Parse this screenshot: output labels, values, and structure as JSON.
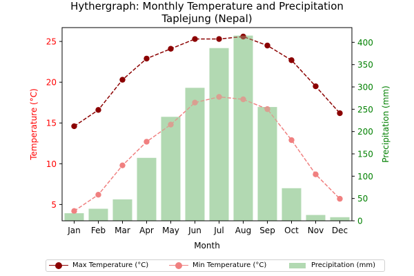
{
  "chart_data": {
    "type": "bar+line",
    "title_line1": "Hythergraph: Monthly Temperature and Precipitation",
    "title_line2": "Taplejung (Nepal)",
    "xlabel": "Month",
    "ylabel_left": "Temperature (°C)",
    "ylabel_right": "Precipitation (mm)",
    "categories": [
      "Jan",
      "Feb",
      "Mar",
      "Apr",
      "May",
      "Jun",
      "Jul",
      "Aug",
      "Sep",
      "Oct",
      "Nov",
      "Dec"
    ],
    "ylim_left": [
      3.0,
      26.7
    ],
    "yticks_left": [
      5,
      10,
      15,
      20,
      25
    ],
    "ylim_right": [
      0,
      433
    ],
    "yticks_right": [
      0,
      50,
      100,
      150,
      200,
      250,
      300,
      350,
      400
    ],
    "grid": false,
    "legend_placement": "bottom-center",
    "series": [
      {
        "name": "Max Temperature (°C)",
        "kind": "line",
        "axis": "left",
        "style": "dashed",
        "color": "#8b0000",
        "values": [
          14.6,
          16.6,
          20.3,
          22.9,
          24.1,
          25.3,
          25.3,
          25.6,
          24.5,
          22.7,
          19.5,
          16.2
        ]
      },
      {
        "name": "Min Temperature (°C)",
        "kind": "line",
        "axis": "left",
        "style": "dashed",
        "color": "#f08080",
        "values": [
          4.2,
          6.2,
          9.8,
          12.7,
          14.8,
          17.5,
          18.2,
          17.9,
          16.7,
          12.9,
          8.7,
          5.7
        ]
      },
      {
        "name": "Precipitation (mm)",
        "kind": "bar",
        "axis": "right",
        "color": "#b2d9b2",
        "values": [
          17,
          27,
          48,
          141,
          233,
          298,
          387,
          415,
          255,
          73,
          13,
          8
        ]
      }
    ],
    "colors": {
      "left_axis": "#ff0000",
      "right_axis": "#008000"
    }
  }
}
